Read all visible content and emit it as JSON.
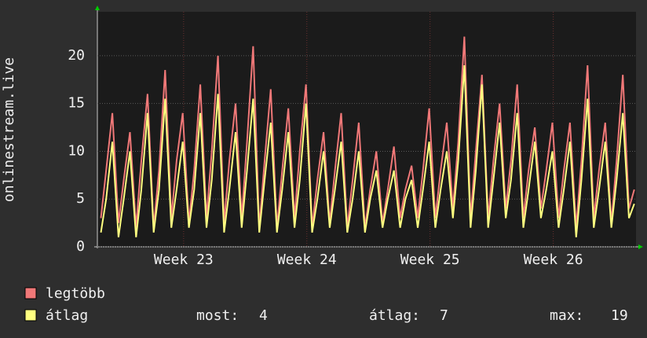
{
  "chart_data": {
    "type": "line",
    "y_label": "onlinestream.live",
    "x": [
      0.2,
      0.5,
      0.85,
      1.2,
      1.5,
      1.85,
      2.2,
      2.5,
      2.85,
      3.2,
      3.5,
      3.85,
      4.2,
      4.5,
      4.85,
      5.2,
      5.5,
      5.85,
      6.2,
      6.5,
      6.85,
      7.2,
      7.5,
      7.85,
      8.2,
      8.5,
      8.85,
      9.2,
      9.5,
      9.85,
      10.2,
      10.5,
      10.85,
      11.2,
      11.5,
      11.85,
      12.2,
      12.5,
      12.85,
      13.2,
      13.5,
      13.85,
      14.2,
      14.5,
      14.85,
      15.2,
      15.5,
      15.85,
      16.2,
      16.5,
      16.85,
      17.2,
      17.5,
      17.85,
      18.2,
      18.5,
      18.85,
      19.2,
      19.5,
      19.85,
      20.2,
      20.5,
      20.85,
      21.2,
      21.5,
      21.85,
      22.2,
      22.5,
      22.85,
      23.2,
      23.5,
      23.85,
      24.2,
      24.5,
      24.85,
      25.2,
      25.5,
      25.85,
      26.2,
      26.5,
      26.85,
      27.2,
      27.5,
      27.85,
      28.2,
      28.5,
      28.85,
      29.2,
      29.5,
      29.85,
      30.2,
      30.5
    ],
    "series": [
      {
        "name": "legtöbb",
        "color": "#f07878",
        "values": [
          3,
          8,
          14,
          2.5,
          7,
          12,
          2,
          9,
          16,
          2,
          8,
          18.5,
          3,
          9,
          14,
          2.5,
          8,
          17,
          3,
          10,
          20,
          2.5,
          9,
          15,
          3,
          11,
          21,
          2,
          9,
          16.5,
          2,
          8,
          14.5,
          3,
          10,
          17,
          2,
          7,
          12,
          2.5,
          8,
          14,
          2,
          7,
          13,
          2,
          6,
          10,
          2.5,
          6,
          10.5,
          3,
          6,
          8.5,
          3,
          8,
          14.5,
          3,
          8,
          13,
          4,
          11,
          22,
          3,
          10,
          18,
          3,
          9,
          15,
          4,
          9,
          17,
          3,
          8,
          12.5,
          4,
          8,
          13,
          3,
          8,
          13,
          2,
          9,
          19,
          3,
          8,
          13,
          2.5,
          9,
          18,
          4,
          6
        ]
      },
      {
        "name": "átlag",
        "color": "#ffff80",
        "values": [
          1.5,
          5,
          11,
          1,
          5,
          10,
          1,
          6,
          14,
          1.5,
          6,
          15.5,
          2,
          6,
          11,
          2,
          6,
          14,
          2,
          7,
          16,
          1.5,
          6,
          12,
          2,
          8,
          15.5,
          1.5,
          7,
          13,
          1.5,
          6,
          12,
          2,
          7,
          15,
          1.5,
          5,
          10,
          2,
          6,
          11,
          1.5,
          5,
          10,
          1.5,
          5,
          8,
          2,
          5,
          8,
          2,
          5,
          7,
          2,
          6,
          11,
          2,
          6,
          10,
          3,
          9,
          19,
          2,
          8,
          17,
          2,
          7,
          13,
          3,
          7,
          14,
          2,
          6,
          11,
          3,
          6,
          10,
          2,
          6,
          11,
          1,
          7,
          15.5,
          2,
          6,
          11,
          2,
          7,
          14,
          3,
          4.5
        ]
      }
    ],
    "xlim": [
      0,
      30.6
    ],
    "xticks": [
      {
        "value": 4.9,
        "label": "Week 23"
      },
      {
        "value": 11.9,
        "label": "Week 24"
      },
      {
        "value": 18.9,
        "label": "Week 25"
      },
      {
        "value": 25.9,
        "label": "Week 26"
      }
    ],
    "ylim": [
      0,
      24.6
    ],
    "yticks": [
      0,
      5,
      10,
      15,
      20
    ],
    "grid": true,
    "stats": [
      {
        "label": "most:",
        "value": 4
      },
      {
        "label": "átlag:",
        "value": 7
      },
      {
        "label": "max:",
        "value": 19
      }
    ]
  }
}
